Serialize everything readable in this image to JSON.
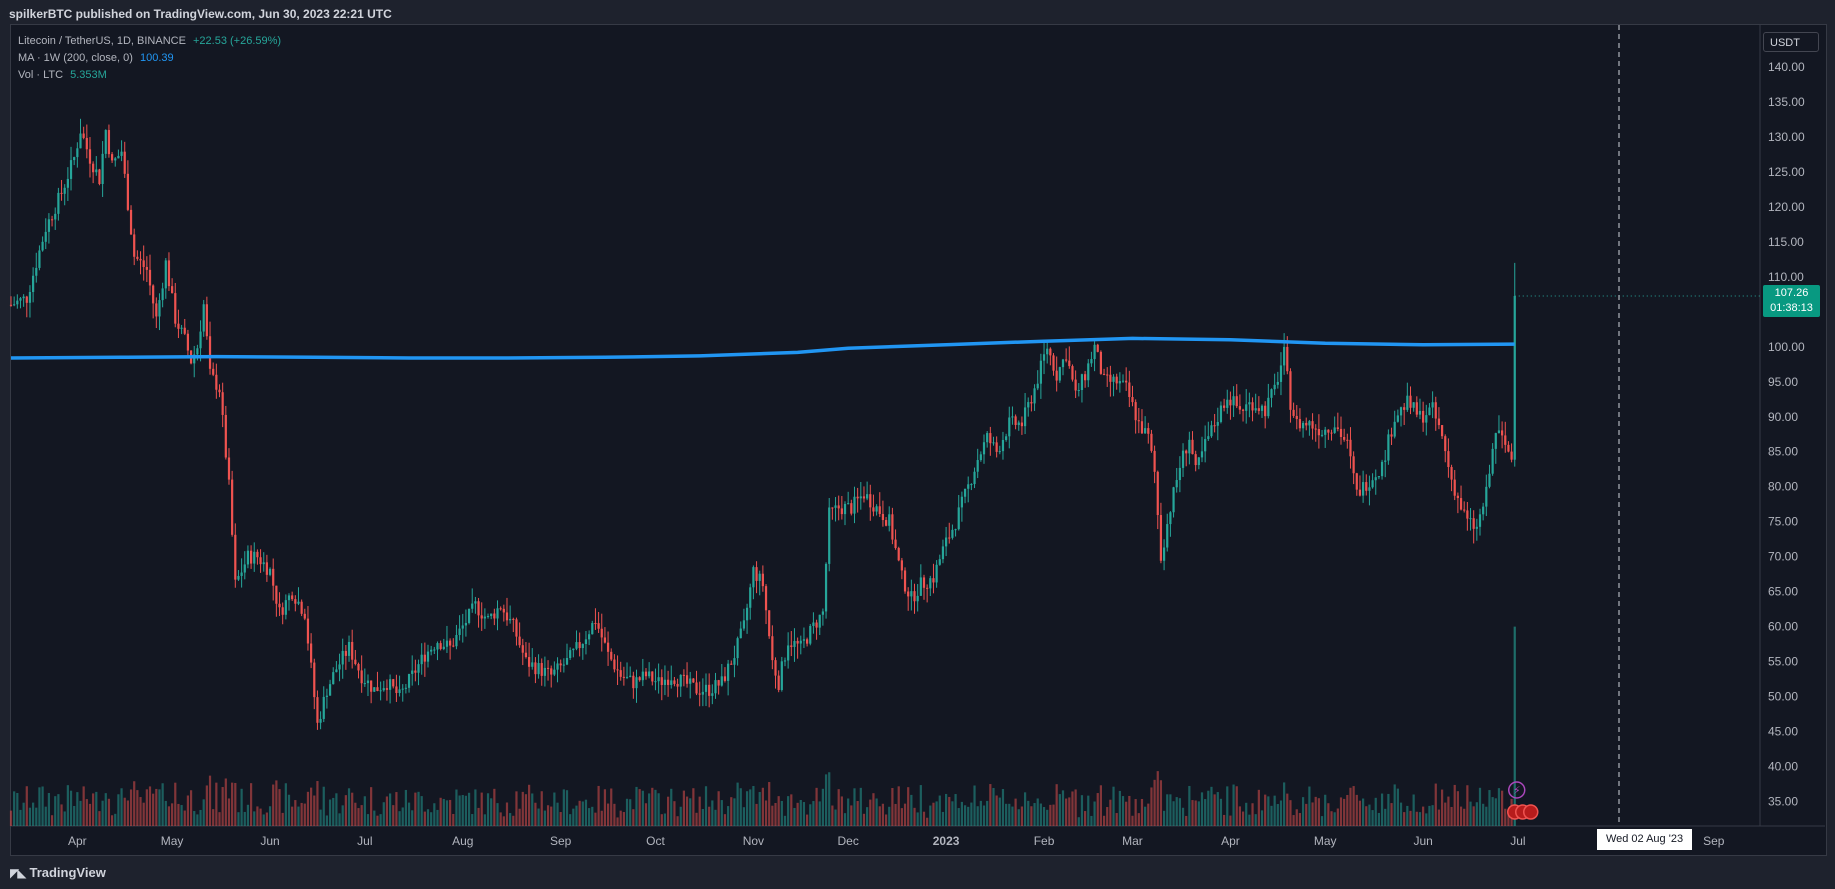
{
  "header": {
    "publisher": "spilkerBTC published on TradingView.com, Jun 30, 2023 22:21 UTC"
  },
  "legend": {
    "symbol": "Litecoin / TetherUS, 1D, BINANCE",
    "change": "+22.53 (+26.59%)",
    "ma_label": "MA · 1W (200, close, 0)",
    "ma_value": "100.39",
    "vol_label": "Vol · LTC",
    "vol_value": "5.353M"
  },
  "price_axis": {
    "currency": "USDT",
    "last_price": "107.26",
    "countdown": "01:38:13"
  },
  "crosshair_date": "Wed 02 Aug '23",
  "footer": {
    "brand": "TradingView",
    "brand_icon": "tradingview-logo-icon"
  },
  "colors": {
    "background": "#131722",
    "up": "#26a69a",
    "down": "#ef5350",
    "ma_line": "#2196f3",
    "text": "#b2b5be"
  },
  "chart_data": {
    "type": "candlestick",
    "title": "Litecoin / TetherUS, 1D, BINANCE",
    "x_tick_labels": [
      "Apr",
      "May",
      "Jun",
      "Jul",
      "Aug",
      "Sep",
      "Oct",
      "Nov",
      "Dec",
      "2023",
      "Feb",
      "Mar",
      "Apr",
      "May",
      "Jun",
      "Jul",
      "Aug",
      "Sep"
    ],
    "y_tick_labels": [
      "35.00",
      "40.00",
      "45.00",
      "50.00",
      "55.00",
      "60.00",
      "65.00",
      "70.00",
      "75.00",
      "80.00",
      "85.00",
      "90.00",
      "95.00",
      "100.00",
      "105.00",
      "110.00",
      "115.00",
      "120.00",
      "125.00",
      "130.00",
      "135.00",
      "140.00"
    ],
    "y_ticks": [
      35,
      40,
      45,
      50,
      55,
      60,
      65,
      70,
      75,
      80,
      85,
      90,
      95,
      100,
      105,
      110,
      115,
      120,
      125,
      130,
      135,
      140
    ],
    "ylim": [
      31.5,
      146
    ],
    "x_ticks": [
      "2022-04-01",
      "2022-05-01",
      "2022-06-01",
      "2022-07-01",
      "2022-08-01",
      "2022-09-01",
      "2022-10-01",
      "2022-11-01",
      "2022-12-01",
      "2023-01-01",
      "2023-02-01",
      "2023-03-01",
      "2023-04-01",
      "2023-05-01",
      "2023-06-01",
      "2023-07-01",
      "2023-08-01",
      "2023-09-01"
    ],
    "date_range": [
      "2022-03-11",
      "2023-09-15"
    ],
    "price_path": [
      [
        "2022-03-11",
        106
      ],
      [
        "2022-03-16",
        107
      ],
      [
        "2022-03-22",
        117
      ],
      [
        "2022-03-27",
        122
      ],
      [
        "2022-03-31",
        127
      ],
      [
        "2022-04-02",
        131
      ],
      [
        "2022-04-05",
        127
      ],
      [
        "2022-04-08",
        124
      ],
      [
        "2022-04-10",
        131
      ],
      [
        "2022-04-12",
        126
      ],
      [
        "2022-04-15",
        128
      ],
      [
        "2022-04-19",
        113
      ],
      [
        "2022-04-23",
        111
      ],
      [
        "2022-04-26",
        104
      ],
      [
        "2022-04-29",
        112
      ],
      [
        "2022-05-02",
        104
      ],
      [
        "2022-05-05",
        101
      ],
      [
        "2022-05-07",
        98
      ],
      [
        "2022-05-09",
        100
      ],
      [
        "2022-05-11",
        106
      ],
      [
        "2022-05-13",
        96
      ],
      [
        "2022-05-16",
        94
      ],
      [
        "2022-05-19",
        80
      ],
      [
        "2022-05-21",
        66
      ],
      [
        "2022-05-25",
        70
      ],
      [
        "2022-05-28",
        70
      ],
      [
        "2022-06-01",
        68
      ],
      [
        "2022-06-04",
        62
      ],
      [
        "2022-06-08",
        65
      ],
      [
        "2022-06-12",
        62
      ],
      [
        "2022-06-14",
        54
      ],
      [
        "2022-06-16",
        46
      ],
      [
        "2022-06-19",
        51
      ],
      [
        "2022-06-22",
        54
      ],
      [
        "2022-06-26",
        57
      ],
      [
        "2022-06-30",
        53
      ],
      [
        "2022-07-04",
        51
      ],
      [
        "2022-07-08",
        52
      ],
      [
        "2022-07-12",
        50
      ],
      [
        "2022-07-16",
        53
      ],
      [
        "2022-07-20",
        56
      ],
      [
        "2022-07-24",
        58
      ],
      [
        "2022-07-28",
        57
      ],
      [
        "2022-08-01",
        60
      ],
      [
        "2022-08-05",
        63
      ],
      [
        "2022-08-09",
        61
      ],
      [
        "2022-08-13",
        63
      ],
      [
        "2022-08-17",
        60
      ],
      [
        "2022-08-21",
        55
      ],
      [
        "2022-08-25",
        54
      ],
      [
        "2022-08-29",
        53
      ],
      [
        "2022-09-03",
        55
      ],
      [
        "2022-09-08",
        58
      ],
      [
        "2022-09-12",
        61
      ],
      [
        "2022-09-16",
        56
      ],
      [
        "2022-09-20",
        53
      ],
      [
        "2022-09-24",
        52
      ],
      [
        "2022-09-28",
        53
      ],
      [
        "2022-10-02",
        52
      ],
      [
        "2022-10-06",
        53
      ],
      [
        "2022-10-10",
        52
      ],
      [
        "2022-10-14",
        51
      ],
      [
        "2022-10-18",
        51
      ],
      [
        "2022-10-22",
        52
      ],
      [
        "2022-10-26",
        56
      ],
      [
        "2022-10-29",
        60
      ],
      [
        "2022-11-01",
        68
      ],
      [
        "2022-11-04",
        66
      ],
      [
        "2022-11-07",
        55
      ],
      [
        "2022-11-09",
        52
      ],
      [
        "2022-11-12",
        58
      ],
      [
        "2022-11-16",
        57
      ],
      [
        "2022-11-20",
        60
      ],
      [
        "2022-11-23",
        62
      ],
      [
        "2022-11-25",
        76
      ],
      [
        "2022-11-28",
        77
      ],
      [
        "2022-12-02",
        77
      ],
      [
        "2022-12-06",
        79
      ],
      [
        "2022-12-10",
        77
      ],
      [
        "2022-12-14",
        75
      ],
      [
        "2022-12-18",
        67
      ],
      [
        "2022-12-21",
        64
      ],
      [
        "2022-12-24",
        66
      ],
      [
        "2022-12-28",
        67
      ],
      [
        "2022-12-31",
        71
      ],
      [
        "2023-01-04",
        75
      ],
      [
        "2023-01-08",
        80
      ],
      [
        "2023-01-11",
        84
      ],
      [
        "2023-01-14",
        87
      ],
      [
        "2023-01-17",
        85
      ],
      [
        "2023-01-21",
        89
      ],
      [
        "2023-01-25",
        89
      ],
      [
        "2023-01-29",
        94
      ],
      [
        "2023-02-02",
        100
      ],
      [
        "2023-02-05",
        96
      ],
      [
        "2023-02-08",
        99
      ],
      [
        "2023-02-11",
        93
      ],
      [
        "2023-02-14",
        96
      ],
      [
        "2023-02-17",
        100
      ],
      [
        "2023-02-20",
        95
      ],
      [
        "2023-02-24",
        95
      ],
      [
        "2023-02-27",
        94
      ],
      [
        "2023-03-03",
        89
      ],
      [
        "2023-03-06",
        87
      ],
      [
        "2023-03-08",
        82
      ],
      [
        "2023-03-10",
        70
      ],
      [
        "2023-03-13",
        77
      ],
      [
        "2023-03-16",
        83
      ],
      [
        "2023-03-19",
        87
      ],
      [
        "2023-03-21",
        82
      ],
      [
        "2023-03-24",
        86
      ],
      [
        "2023-03-27",
        89
      ],
      [
        "2023-03-31",
        93
      ],
      [
        "2023-04-04",
        91
      ],
      [
        "2023-04-08",
        92
      ],
      [
        "2023-04-12",
        91
      ],
      [
        "2023-04-15",
        94
      ],
      [
        "2023-04-18",
        99
      ],
      [
        "2023-04-20",
        92
      ],
      [
        "2023-04-22",
        89
      ],
      [
        "2023-04-26",
        89
      ],
      [
        "2023-04-30",
        88
      ],
      [
        "2023-05-04",
        89
      ],
      [
        "2023-05-08",
        86
      ],
      [
        "2023-05-11",
        79
      ],
      [
        "2023-05-15",
        81
      ],
      [
        "2023-05-19",
        83
      ],
      [
        "2023-05-23",
        90
      ],
      [
        "2023-05-27",
        92
      ],
      [
        "2023-05-31",
        90
      ],
      [
        "2023-06-04",
        91
      ],
      [
        "2023-06-07",
        87
      ],
      [
        "2023-06-10",
        81
      ],
      [
        "2023-06-13",
        77
      ],
      [
        "2023-06-15",
        75
      ],
      [
        "2023-06-18",
        74
      ],
      [
        "2023-06-21",
        79
      ],
      [
        "2023-06-24",
        88
      ],
      [
        "2023-06-27",
        86
      ],
      [
        "2023-06-29",
        84
      ],
      [
        "2023-06-30",
        107.26
      ]
    ],
    "ma_series": {
      "name": "MA · 1W (200, close, 0)",
      "points": [
        [
          "2022-03-11",
          98.4
        ],
        [
          "2022-04-15",
          98.5
        ],
        [
          "2022-05-15",
          98.6
        ],
        [
          "2022-06-15",
          98.5
        ],
        [
          "2022-07-15",
          98.4
        ],
        [
          "2022-08-15",
          98.4
        ],
        [
          "2022-09-15",
          98.5
        ],
        [
          "2022-10-15",
          98.7
        ],
        [
          "2022-11-15",
          99.2
        ],
        [
          "2022-12-01",
          99.8
        ],
        [
          "2023-01-01",
          100.3
        ],
        [
          "2023-02-01",
          100.8
        ],
        [
          "2023-03-01",
          101.2
        ],
        [
          "2023-04-01",
          101.0
        ],
        [
          "2023-05-01",
          100.5
        ],
        [
          "2023-06-01",
          100.3
        ],
        [
          "2023-06-30",
          100.39
        ]
      ]
    },
    "volume_max_label": "5.353M",
    "crosshair_x": "2023-08-02"
  }
}
